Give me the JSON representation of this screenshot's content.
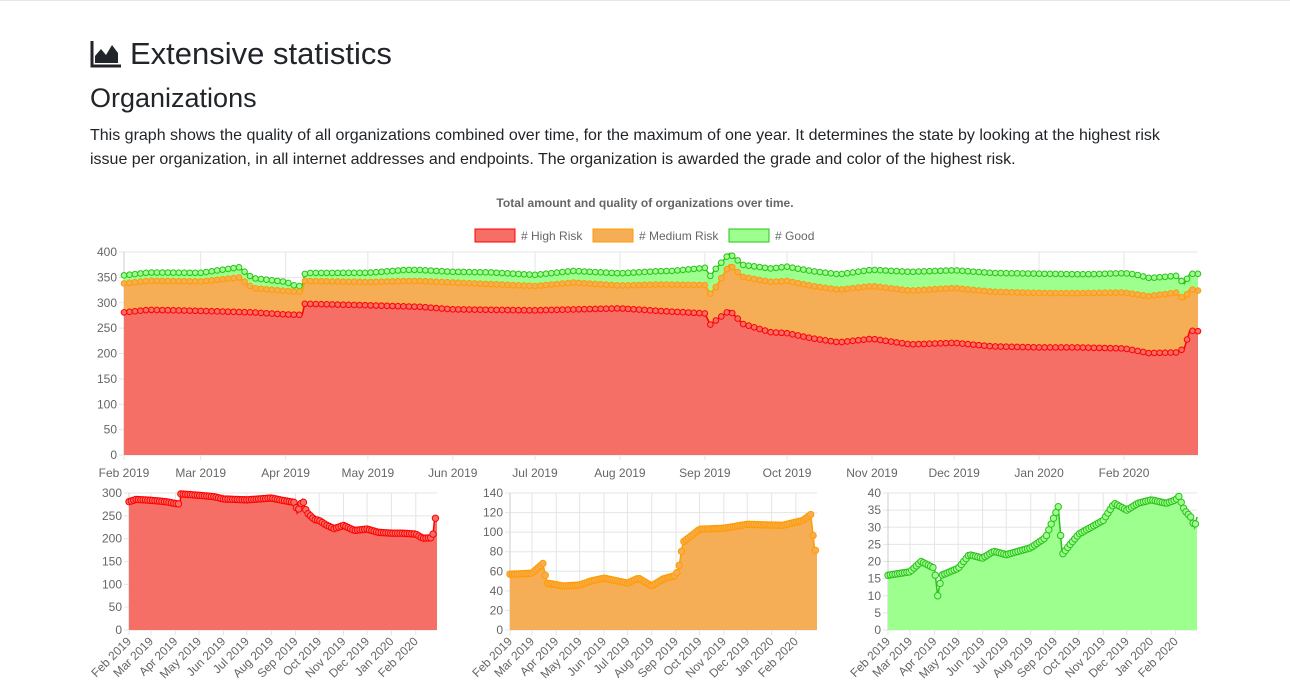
{
  "page": {
    "title": "Extensive statistics",
    "title_icon": "area-chart-icon",
    "section_title": "Organizations",
    "description": "This graph shows the quality of all organizations combined over time, for the maximum of one year. It determines the state by looking at the highest risk issue per organization, in all internet addresses and endpoints. The organization is awarded the grade and color of the highest risk."
  },
  "colors": {
    "high": "#f56f66",
    "high_line": "#ff0000",
    "medium": "#f5ad56",
    "medium_line": "#ff9c00",
    "good": "#9cff8e",
    "good_line": "#2dbf1d"
  },
  "chart_data": [
    {
      "type": "area",
      "stacked": true,
      "title": "Total amount and quality of organizations over time.",
      "legend": [
        "# High Risk",
        "# Medium Risk",
        "# Good"
      ],
      "legend_position": "top",
      "x_ticks": [
        "Feb 2019",
        "Mar 2019",
        "Apr 2019",
        "May 2019",
        "Jun 2019",
        "Jul 2019",
        "Aug 2019",
        "Sep 2019",
        "Oct 2019",
        "Nov 2019",
        "Dec 2019",
        "Jan 2020",
        "Feb 2020"
      ],
      "x_range": [
        "2019-02-01",
        "2020-02-28"
      ],
      "ylim": [
        0,
        400
      ],
      "y_ticks": [
        0,
        50,
        100,
        150,
        200,
        250,
        300,
        350,
        400
      ],
      "grid": true,
      "series": [
        {
          "name": "# High Risk",
          "points": [
            [
              "2019-02-01",
              281
            ],
            [
              "2019-02-10",
              286
            ],
            [
              "2019-03-01",
              284
            ],
            [
              "2019-03-20",
              281
            ],
            [
              "2019-04-01",
              277
            ],
            [
              "2019-04-07",
              276
            ],
            [
              "2019-04-08",
              298
            ],
            [
              "2019-05-01",
              295
            ],
            [
              "2019-05-20",
              292
            ],
            [
              "2019-06-01",
              287
            ],
            [
              "2019-07-01",
              285
            ],
            [
              "2019-08-01",
              289
            ],
            [
              "2019-08-15",
              284
            ],
            [
              "2019-09-01",
              279
            ],
            [
              "2019-09-03",
              257
            ],
            [
              "2019-09-10",
              285
            ],
            [
              "2019-09-15",
              258
            ],
            [
              "2019-09-25",
              242
            ],
            [
              "2019-10-01",
              240
            ],
            [
              "2019-10-10",
              230
            ],
            [
              "2019-10-20",
              222
            ],
            [
              "2019-11-01",
              229
            ],
            [
              "2019-11-15",
              218
            ],
            [
              "2019-12-01",
              221
            ],
            [
              "2019-12-15",
              214
            ],
            [
              "2020-01-01",
              212
            ],
            [
              "2020-01-15",
              212
            ],
            [
              "2020-02-01",
              210
            ],
            [
              "2020-02-10",
              201
            ],
            [
              "2020-02-20",
              202
            ],
            [
              "2020-02-23",
              210
            ],
            [
              "2020-02-25",
              245
            ],
            [
              "2020-02-28",
              244
            ]
          ]
        },
        {
          "name": "# Medium Risk",
          "points": [
            [
              "2019-02-01",
              57
            ],
            [
              "2019-03-01",
              58
            ],
            [
              "2019-03-15",
              68
            ],
            [
              "2019-03-20",
              48
            ],
            [
              "2019-04-10",
              45
            ],
            [
              "2019-05-01",
              46
            ],
            [
              "2019-05-15",
              50
            ],
            [
              "2019-06-01",
              53
            ],
            [
              "2019-07-01",
              48
            ],
            [
              "2019-07-15",
              53
            ],
            [
              "2019-08-01",
              45
            ],
            [
              "2019-08-15",
              52
            ],
            [
              "2019-09-01",
              56
            ],
            [
              "2019-09-05",
              66
            ],
            [
              "2019-09-10",
              90
            ],
            [
              "2019-09-20",
              96
            ],
            [
              "2019-10-01",
              103
            ],
            [
              "2019-11-01",
              104
            ],
            [
              "2019-12-01",
              108
            ],
            [
              "2020-01-15",
              107
            ],
            [
              "2020-02-10",
              112
            ],
            [
              "2020-02-20",
              118
            ],
            [
              "2020-02-25",
              82
            ],
            [
              "2020-02-28",
              80
            ]
          ]
        },
        {
          "name": "# Good",
          "points": [
            [
              "2019-02-01",
              16
            ],
            [
              "2019-03-01",
              17
            ],
            [
              "2019-03-15",
              20
            ],
            [
              "2019-04-01",
              18
            ],
            [
              "2019-04-05",
              10
            ],
            [
              "2019-04-10",
              16
            ],
            [
              "2019-05-01",
              18
            ],
            [
              "2019-05-15",
              22
            ],
            [
              "2019-06-01",
              21
            ],
            [
              "2019-06-15",
              23
            ],
            [
              "2019-07-01",
              22
            ],
            [
              "2019-08-01",
              24
            ],
            [
              "2019-08-20",
              27
            ],
            [
              "2019-09-05",
              36
            ],
            [
              "2019-09-10",
              22
            ],
            [
              "2019-09-20",
              25
            ],
            [
              "2019-10-01",
              28
            ],
            [
              "2019-11-01",
              32
            ],
            [
              "2019-11-15",
              37
            ],
            [
              "2019-12-01",
              35
            ],
            [
              "2019-12-15",
              37
            ],
            [
              "2020-01-01",
              38
            ],
            [
              "2020-01-20",
              37
            ],
            [
              "2020-02-01",
              38
            ],
            [
              "2020-02-05",
              39
            ],
            [
              "2020-02-12",
              35
            ],
            [
              "2020-02-20",
              33
            ],
            [
              "2020-02-25",
              30
            ],
            [
              "2020-02-28",
              33
            ]
          ]
        }
      ]
    },
    {
      "type": "area",
      "series_ref": "# High Risk",
      "x_ticks": [
        "Feb 2019",
        "Mar 2019",
        "Apr 2019",
        "May 2019",
        "Jun 2019",
        "Jul 2019",
        "Aug 2019",
        "Sep 2019",
        "Oct 2019",
        "Nov 2019",
        "Dec 2019",
        "Jan 2020",
        "Feb 2020"
      ],
      "ylim": [
        0,
        300
      ],
      "y_ticks": [
        0,
        50,
        100,
        150,
        200,
        250,
        300
      ]
    },
    {
      "type": "area",
      "series_ref": "# Medium Risk",
      "x_ticks": [
        "Feb 2019",
        "Mar 2019",
        "Apr 2019",
        "May 2019",
        "Jun 2019",
        "Jul 2019",
        "Aug 2019",
        "Sep 2019",
        "Oct 2019",
        "Nov 2019",
        "Dec 2019",
        "Jan 2020",
        "Feb 2020"
      ],
      "ylim": [
        0,
        140
      ],
      "y_ticks": [
        0,
        20,
        40,
        60,
        80,
        100,
        120,
        140
      ]
    },
    {
      "type": "area",
      "series_ref": "# Good",
      "x_ticks": [
        "Feb 2019",
        "Mar 2019",
        "Apr 2019",
        "May 2019",
        "Jun 2019",
        "Jul 2019",
        "Aug 2019",
        "Sep 2019",
        "Oct 2019",
        "Nov 2019",
        "Dec 2019",
        "Jan 2020",
        "Feb 2020"
      ],
      "ylim": [
        0,
        40
      ],
      "y_ticks": [
        0,
        5,
        10,
        15,
        20,
        25,
        30,
        35,
        40
      ]
    }
  ]
}
